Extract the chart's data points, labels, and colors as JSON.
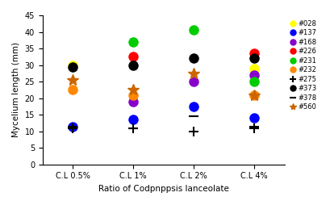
{
  "x_labels": [
    "C.L 0.5%",
    "C.L 1%",
    "C.L 2%",
    "C.L 4%"
  ],
  "x_positions": [
    1,
    2,
    3,
    4
  ],
  "xlabel": "Ratio of Codpnppsis lanceolate",
  "ylabel": "Mycelium length (mm)",
  "ylim": [
    0,
    45
  ],
  "yticks": [
    0,
    5,
    10,
    15,
    20,
    25,
    30,
    35,
    40,
    45
  ],
  "series": {
    "#028": {
      "color": "#ffff00",
      "marker": "o",
      "values": [
        30,
        null,
        null,
        29
      ]
    },
    "#137": {
      "color": "#0000ff",
      "marker": "o",
      "values": [
        11.5,
        13.5,
        17.5,
        14
      ]
    },
    "#168": {
      "color": "#8800cc",
      "marker": "o",
      "values": [
        null,
        19,
        25,
        27
      ]
    },
    "#226": {
      "color": "#ff0000",
      "marker": "o",
      "values": [
        null,
        32.5,
        null,
        33.5
      ]
    },
    "#231": {
      "color": "#00cc00",
      "marker": "o",
      "values": [
        null,
        37,
        40.5,
        25
      ]
    },
    "#232": {
      "color": "#ff8800",
      "marker": "o",
      "values": [
        22.5,
        21,
        null,
        21
      ]
    },
    "#275": {
      "color": "#000000",
      "marker": "+",
      "values": [
        11,
        11,
        10,
        11
      ]
    },
    "#373": {
      "color": "#000000",
      "marker": "o",
      "values": [
        29.5,
        30,
        32,
        32
      ]
    },
    "#378": {
      "color": "#000000",
      "marker": "_",
      "values": [
        11.5,
        11,
        14.5,
        11.5
      ]
    },
    "#560": {
      "color": "#cc6600",
      "marker": "*",
      "values": [
        25.5,
        22.5,
        27.5,
        21
      ]
    }
  },
  "legend_entries": [
    "#028",
    "#137",
    "#168",
    "#226",
    "#231",
    "#232",
    "#275",
    "#373",
    "#378",
    "#560"
  ],
  "legend_colors": [
    "#ffff00",
    "#0000ff",
    "#8800cc",
    "#ff0000",
    "#00cc00",
    "#ff8800",
    "#000000",
    "#000000",
    "#000000",
    "#cc6600"
  ],
  "legend_markers": [
    "o",
    "o",
    "o",
    "o",
    "o",
    "o",
    "+",
    "o",
    "_",
    "*"
  ]
}
